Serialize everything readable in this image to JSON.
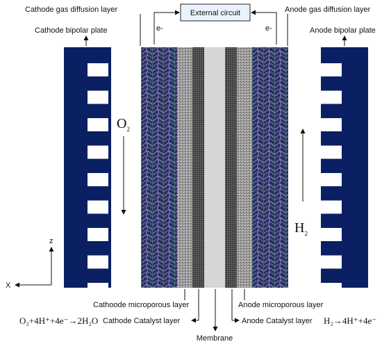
{
  "labels": {
    "cathode_gdl": "Cathode gas diffusion layer",
    "anode_gdl": "Anode gas diffusion layer",
    "external_circuit": "External circuit",
    "cathode_bipolar": "Cathode bipolar plate",
    "anode_bipolar": "Anode bipolar plate",
    "electron_left": "e-",
    "electron_right": "e-",
    "cathode_microporous": "Cathoode microporous layer",
    "anode_microporous": "Anode microporous layer",
    "cathode_catalyst": "Cathode Catalyst layer",
    "anode_catalyst": "Anode Catalyst layer",
    "membrane": "Membrane",
    "o2_main": "O",
    "o2_sub": "2",
    "h2_main": "H",
    "h2_sub": "2",
    "axis_z": "z",
    "axis_x": "X"
  },
  "equations": {
    "cathode": "O₂+4H⁺+4e⁻→2H₂O",
    "anode": "H₂→4H⁺+4e⁻"
  },
  "colors": {
    "bipolar_plate": "#0b1f63",
    "gdl_blue": "#4a4f9a",
    "mpl_gray": "#8a8a8a",
    "catalyst_dark": "#4a4a4a",
    "membrane": "#d6d6d6",
    "text": "#111111"
  },
  "bipolar_channels_per_plate": 9
}
